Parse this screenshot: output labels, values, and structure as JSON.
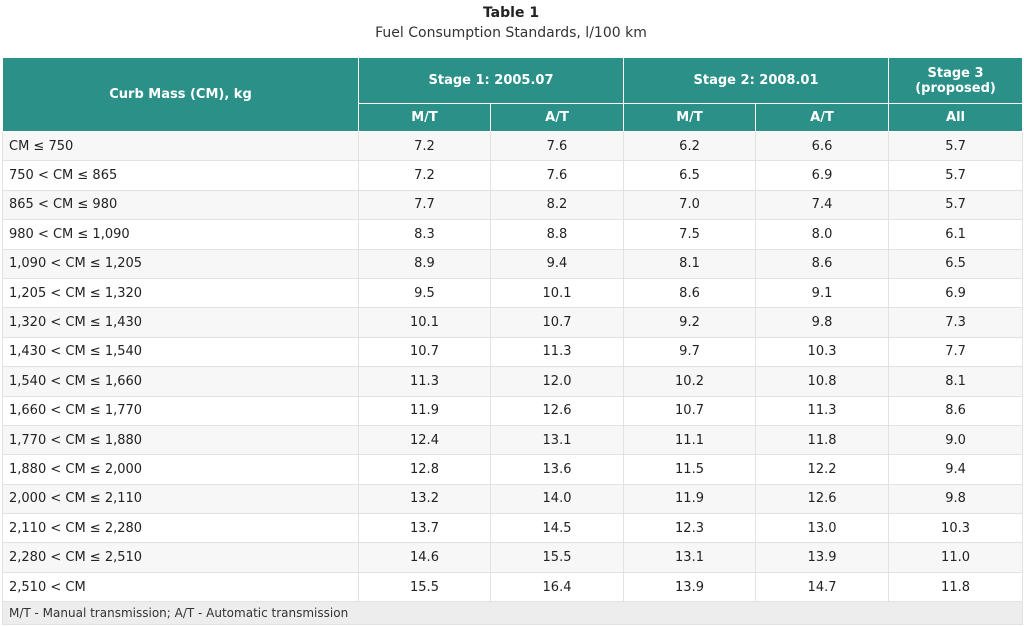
{
  "caption": {
    "title": "Table 1",
    "subtitle": "Fuel Consumption Standards, l/100 km"
  },
  "header": {
    "curb_mass": "Curb Mass (CM), kg",
    "stage1": "Stage 1: 2005.07",
    "stage2": "Stage 2: 2008.01",
    "stage3_line1": "Stage 3",
    "stage3_line2": "(proposed)",
    "mt": "M/T",
    "at": "A/T",
    "all": "All"
  },
  "rows": [
    {
      "cm": "CM ≤ 750",
      "s1_mt": "7.2",
      "s1_at": "7.6",
      "s2_mt": "6.2",
      "s2_at": "6.6",
      "s3": "5.7"
    },
    {
      "cm": "750 < CM ≤ 865",
      "s1_mt": "7.2",
      "s1_at": "7.6",
      "s2_mt": "6.5",
      "s2_at": "6.9",
      "s3": "5.7"
    },
    {
      "cm": "865 < CM ≤ 980",
      "s1_mt": "7.7",
      "s1_at": "8.2",
      "s2_mt": "7.0",
      "s2_at": "7.4",
      "s3": "5.7"
    },
    {
      "cm": "980 < CM ≤ 1,090",
      "s1_mt": "8.3",
      "s1_at": "8.8",
      "s2_mt": "7.5",
      "s2_at": "8.0",
      "s3": "6.1"
    },
    {
      "cm": "1,090 < CM ≤ 1,205",
      "s1_mt": "8.9",
      "s1_at": "9.4",
      "s2_mt": "8.1",
      "s2_at": "8.6",
      "s3": "6.5"
    },
    {
      "cm": "1,205 < CM ≤ 1,320",
      "s1_mt": "9.5",
      "s1_at": "10.1",
      "s2_mt": "8.6",
      "s2_at": "9.1",
      "s3": "6.9"
    },
    {
      "cm": "1,320 < CM ≤ 1,430",
      "s1_mt": "10.1",
      "s1_at": "10.7",
      "s2_mt": "9.2",
      "s2_at": "9.8",
      "s3": "7.3"
    },
    {
      "cm": "1,430 < CM ≤ 1,540",
      "s1_mt": "10.7",
      "s1_at": "11.3",
      "s2_mt": "9.7",
      "s2_at": "10.3",
      "s3": "7.7"
    },
    {
      "cm": "1,540 < CM ≤ 1,660",
      "s1_mt": "11.3",
      "s1_at": "12.0",
      "s2_mt": "10.2",
      "s2_at": "10.8",
      "s3": "8.1"
    },
    {
      "cm": "1,660 < CM ≤ 1,770",
      "s1_mt": "11.9",
      "s1_at": "12.6",
      "s2_mt": "10.7",
      "s2_at": "11.3",
      "s3": "8.6"
    },
    {
      "cm": "1,770 < CM ≤ 1,880",
      "s1_mt": "12.4",
      "s1_at": "13.1",
      "s2_mt": "11.1",
      "s2_at": "11.8",
      "s3": "9.0"
    },
    {
      "cm": "1,880 < CM ≤ 2,000",
      "s1_mt": "12.8",
      "s1_at": "13.6",
      "s2_mt": "11.5",
      "s2_at": "12.2",
      "s3": "9.4"
    },
    {
      "cm": "2,000 < CM ≤ 2,110",
      "s1_mt": "13.2",
      "s1_at": "14.0",
      "s2_mt": "11.9",
      "s2_at": "12.6",
      "s3": "9.8"
    },
    {
      "cm": "2,110 < CM ≤ 2,280",
      "s1_mt": "13.7",
      "s1_at": "14.5",
      "s2_mt": "12.3",
      "s2_at": "13.0",
      "s3": "10.3"
    },
    {
      "cm": "2,280 < CM ≤ 2,510",
      "s1_mt": "14.6",
      "s1_at": "15.5",
      "s2_mt": "13.1",
      "s2_at": "13.9",
      "s3": "11.0"
    },
    {
      "cm": "2,510 < CM",
      "s1_mt": "15.5",
      "s1_at": "16.4",
      "s2_mt": "13.9",
      "s2_at": "14.7",
      "s3": "11.8"
    }
  ],
  "footnote": "M/T - Manual transmission; A/T - Automatic transmission",
  "colors": {
    "header_bg": "#2a9088",
    "header_text": "#ffffff",
    "row_alt": "#f7f7f7",
    "footnote_bg": "#ededed"
  }
}
